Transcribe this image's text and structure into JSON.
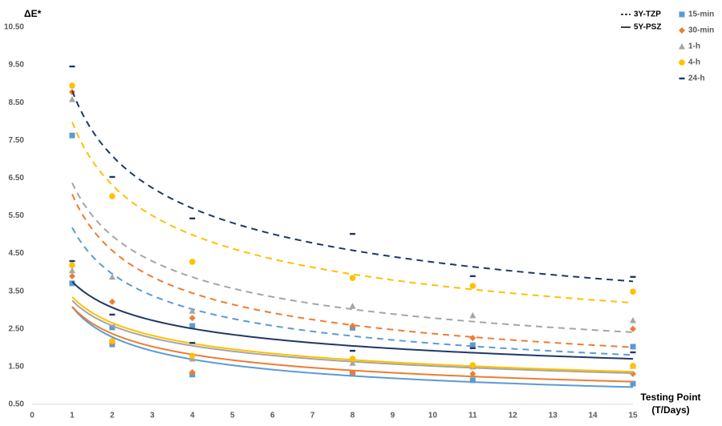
{
  "chart_data": {
    "type": "scatter",
    "ylabel": "ΔE*",
    "xlabel": [
      "Testing Point",
      "(T/Days)"
    ],
    "x": [
      1,
      2,
      4,
      8,
      11,
      15
    ],
    "xlim": [
      0,
      15
    ],
    "xticks": [
      0,
      1,
      2,
      3,
      4,
      5,
      6,
      7,
      8,
      9,
      10,
      11,
      12,
      13,
      14,
      15
    ],
    "ylim": [
      0.5,
      10.5
    ],
    "yticks": [
      {
        "value": 0.5,
        "label": "0.50"
      },
      {
        "value": 1.5,
        "label": "1.50"
      },
      {
        "value": 2.5,
        "label": "2.50"
      },
      {
        "value": 3.5,
        "label": "3.50"
      },
      {
        "value": 4.5,
        "label": "4.50"
      },
      {
        "value": 5.5,
        "label": "5.50"
      },
      {
        "value": 6.5,
        "label": "6.50"
      },
      {
        "value": 7.5,
        "label": "7.50"
      },
      {
        "value": 8.5,
        "label": "8.50"
      },
      {
        "value": 9.5,
        "label": "9.50"
      },
      {
        "value": 10.5,
        "label": "10.50"
      }
    ],
    "line_styles": [
      {
        "name": "3Y-TZP",
        "dashed": true
      },
      {
        "name": "5Y-PSZ",
        "dashed": false
      }
    ],
    "trendline": "power",
    "series": [
      {
        "name": "15-min",
        "color": "#5b9bd5",
        "marker": "square",
        "values": [
          [
            7.63,
            2.54,
            2.58,
            2.53,
            2.07,
            2.03
          ],
          [
            3.71,
            2.09,
            1.29,
            1.31,
            1.14,
            1.05
          ]
        ]
      },
      {
        "name": "30-min",
        "color": "#ed7d31",
        "marker": "diamond",
        "values": [
          [
            8.78,
            3.22,
            2.79,
            2.58,
            2.26,
            2.5
          ],
          [
            3.9,
            2.13,
            1.35,
            1.33,
            1.31,
            1.31
          ]
        ]
      },
      {
        "name": "1-h",
        "color": "#a5a5a5",
        "marker": "triangle",
        "values": [
          [
            8.59,
            3.88,
            2.98,
            3.11,
            2.86,
            2.73
          ],
          [
            4.05,
            2.18,
            1.71,
            1.6,
            1.5,
            1.52
          ]
        ]
      },
      {
        "name": "4-h",
        "color": "#ffc000",
        "marker": "circle",
        "values": [
          [
            8.95,
            6.02,
            4.28,
            3.85,
            3.64,
            3.49
          ],
          [
            4.19,
            2.18,
            1.79,
            1.71,
            1.54,
            1.52
          ]
        ]
      },
      {
        "name": "24-h",
        "color": "#203864",
        "marker": "dash",
        "values": [
          [
            9.46,
            6.53,
            5.43,
            5.02,
            3.9,
            3.88
          ],
          [
            4.3,
            2.88,
            2.13,
            1.92,
            1.99,
            1.88
          ]
        ]
      }
    ]
  }
}
